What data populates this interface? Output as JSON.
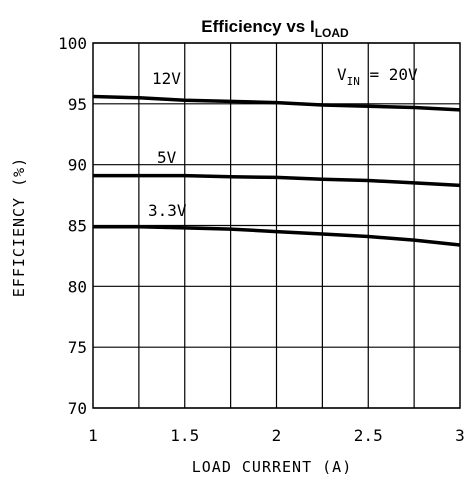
{
  "chart_data": {
    "type": "line",
    "title": {
      "main": "Efficiency vs I",
      "subscript": "LOAD"
    },
    "xlabel": "LOAD CURRENT (A)",
    "ylabel": "EFFICIENCY (%)",
    "xlim": [
      1,
      3
    ],
    "ylim": [
      70,
      100
    ],
    "x_ticks": [
      "1",
      "1.5",
      "2",
      "2.5",
      "3"
    ],
    "y_ticks": [
      "70",
      "75",
      "80",
      "85",
      "90",
      "95",
      "100"
    ],
    "grid": true,
    "annotation": {
      "prefix": "V",
      "subscript": "IN",
      "suffix": " = 20V"
    },
    "series": [
      {
        "name": "12V",
        "x": [
          1,
          1.25,
          1.5,
          1.75,
          2,
          2.25,
          2.5,
          2.75,
          3
        ],
        "y": [
          95.6,
          95.5,
          95.3,
          95.2,
          95.1,
          94.9,
          94.8,
          94.7,
          94.5
        ]
      },
      {
        "name": "5V",
        "x": [
          1,
          1.25,
          1.5,
          1.75,
          2,
          2.25,
          2.5,
          2.75,
          3
        ],
        "y": [
          89.1,
          89.1,
          89.1,
          89.0,
          88.95,
          88.8,
          88.7,
          88.5,
          88.3
        ]
      },
      {
        "name": "3.3V",
        "x": [
          1,
          1.25,
          1.5,
          1.75,
          2,
          2.25,
          2.5,
          2.75,
          3
        ],
        "y": [
          84.9,
          84.9,
          84.8,
          84.7,
          84.5,
          84.3,
          84.1,
          83.8,
          83.4
        ]
      }
    ]
  }
}
